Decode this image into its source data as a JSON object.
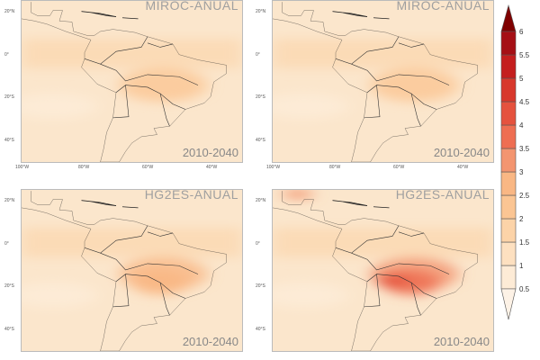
{
  "panels": [
    {
      "title": "MIROC-ANUAL",
      "period": "2010-2040",
      "intensity": 1
    },
    {
      "title": "MIROC-ANUAL",
      "period": "2010-2040",
      "intensity": 1
    },
    {
      "title": "HG2ES-ANUAL",
      "period": "2010-2040",
      "intensity": 2
    },
    {
      "title": "HG2ES-ANUAL",
      "period": "2010-2040",
      "intensity": 3
    }
  ],
  "axes": {
    "lat_labels": [
      "20°N",
      "0°",
      "20°S",
      "40°S"
    ],
    "lon_labels": [
      "100°W",
      "80°W",
      "60°W",
      "40°W"
    ]
  },
  "colorbar": {
    "labels": [
      "0.5",
      "1",
      "1.5",
      "2",
      "2.5",
      "3",
      "3.5",
      "4",
      "4.5",
      "5",
      "5.5",
      "6"
    ],
    "colors": [
      "#fdf2e6",
      "#fdebd6",
      "#fde0c0",
      "#fcd3a8",
      "#fbc593",
      "#f9b784",
      "#f39570",
      "#ee6e52",
      "#e5523e",
      "#d8382c",
      "#c41e1e",
      "#a50f15",
      "#7f0000"
    ]
  }
}
